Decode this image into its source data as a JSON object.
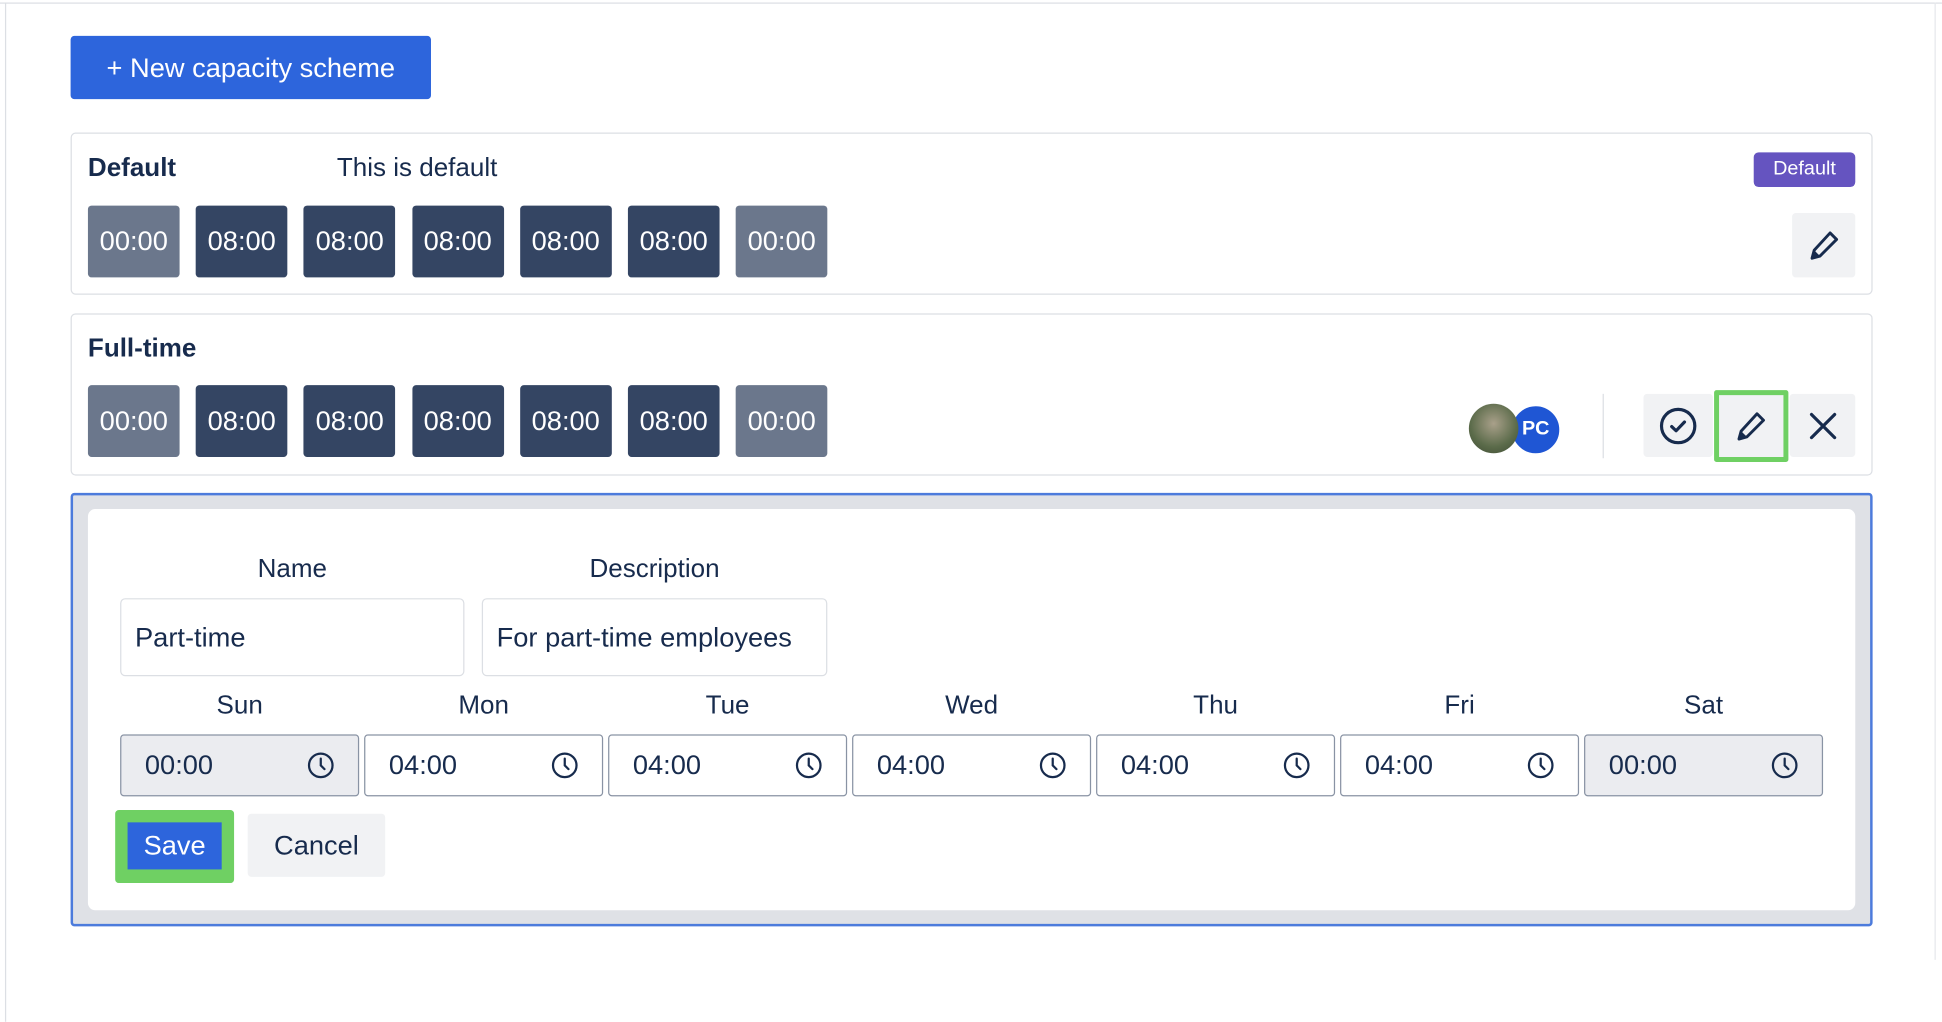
{
  "toolbar": {
    "new_scheme_label": "+ New capacity scheme"
  },
  "schemes": [
    {
      "name": "Default",
      "description": "This is default",
      "badge": "Default",
      "hours": [
        "00:00",
        "08:00",
        "08:00",
        "08:00",
        "08:00",
        "08:00",
        "00:00"
      ]
    },
    {
      "name": "Full-time",
      "description": "",
      "hours": [
        "00:00",
        "08:00",
        "08:00",
        "08:00",
        "08:00",
        "08:00",
        "00:00"
      ],
      "avatars": [
        {
          "type": "photo"
        },
        {
          "initials": "PC",
          "color": "#1f56d4"
        }
      ]
    }
  ],
  "form": {
    "name_label": "Name",
    "description_label": "Description",
    "name_value": "Part-time",
    "description_value": "For part-time employees",
    "days": [
      {
        "label": "Sun",
        "value": "00:00",
        "weekend": true
      },
      {
        "label": "Mon",
        "value": "04:00"
      },
      {
        "label": "Tue",
        "value": "04:00"
      },
      {
        "label": "Wed",
        "value": "04:00"
      },
      {
        "label": "Thu",
        "value": "04:00"
      },
      {
        "label": "Fri",
        "value": "04:00"
      },
      {
        "label": "Sat",
        "value": "00:00",
        "weekend": true
      }
    ],
    "save_label": "Save",
    "cancel_label": "Cancel"
  },
  "colors": {
    "primary": "#2d65dc",
    "badge": "#6554c0",
    "highlight": "#6fd063",
    "chip_on": "#344563",
    "chip_off": "#6b778c"
  }
}
